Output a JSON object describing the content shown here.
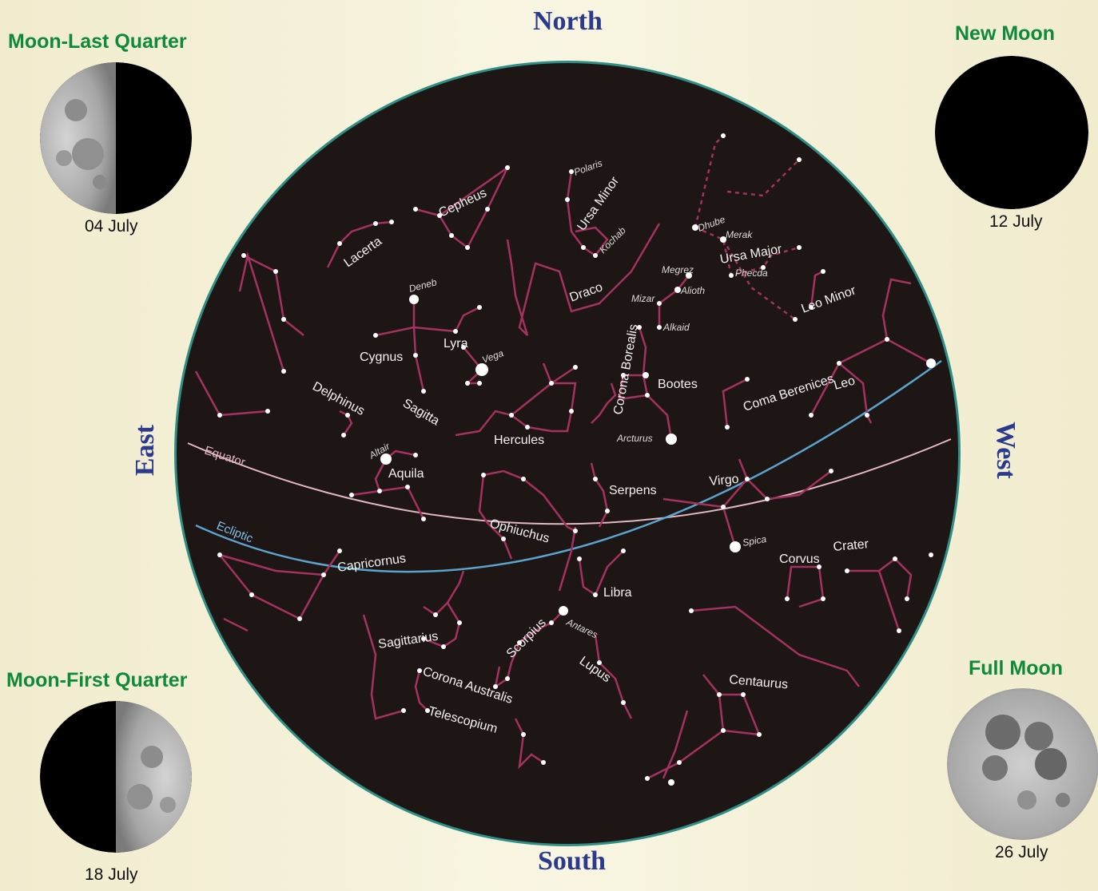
{
  "directions": {
    "north": "North",
    "south": "South",
    "east": "East",
    "west": "West"
  },
  "moons": [
    {
      "title": "Moon-Last Quarter",
      "date": "04 July",
      "phase": "last-quarter"
    },
    {
      "title": "New Moon",
      "date": "12 July",
      "phase": "new"
    },
    {
      "title": "Moon-First Quarter",
      "date": "18 July",
      "phase": "first-quarter"
    },
    {
      "title": "Full Moon",
      "date": "26 July",
      "phase": "full"
    }
  ],
  "lines": {
    "equator": "Equator",
    "ecliptic": "Ecliptic"
  },
  "constellations": {
    "cepheus": "Cepheus",
    "lacerta": "Lacerta",
    "ursa_minor": "Ursa Minor",
    "ursa_major": "Ursa Major",
    "leo_minor": "Leo Minor",
    "draco": "Draco",
    "cygnus": "Cygnus",
    "lyra": "Lyra",
    "corona_borealis": "Corona Borealis",
    "bootes": "Bootes",
    "coma_berenices": "Coma Berenices",
    "leo": "Leo",
    "delphinus": "Delphinus",
    "sagitta": "Sagitta",
    "hercules": "Hercules",
    "aquila": "Aquila",
    "serpens": "Serpens",
    "virgo": "Virgo",
    "ophiuchus": "Ophiuchus",
    "capricornus": "Capricornus",
    "libra": "Libra",
    "corvus": "Corvus",
    "crater": "Crater",
    "sagittarius": "Sagittarius",
    "scorpius": "Scorpius",
    "lupus": "Lupus",
    "centaurus": "Centaurus",
    "corona_australis": "Corona Australis",
    "telescopium": "Telescopium"
  },
  "stars": {
    "polaris": "Polaris",
    "kochab": "Kochab",
    "dhube": "Dhube",
    "merak": "Merak",
    "megrez": "Megrez",
    "phecda": "Phecda",
    "alioth": "Alioth",
    "mizar": "Mizar",
    "alkaid": "Alkaid",
    "deneb": "Deneb",
    "vega": "Vega",
    "arcturus": "Arcturus",
    "altair": "Altair",
    "spica": "Spica",
    "antares": "Antares"
  },
  "colors": {
    "sky": "#1e1614",
    "rim": "#2f8f86",
    "lines": "#a3325f",
    "equator": "#e2b8c4",
    "ecliptic": "#5aa4cf",
    "direction": "#2b3a8c",
    "moon_title": "#0f8a3a"
  }
}
